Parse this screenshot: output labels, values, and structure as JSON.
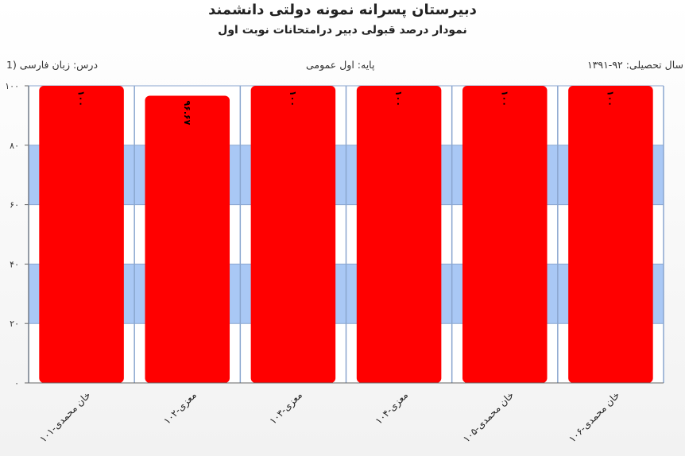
{
  "chart_data": {
    "type": "bar",
    "title": "دبیرستان پسرانه نمونه دولتی دانشمند",
    "subtitle": "نمودار درصد قبولی دبیر درامتحانات نوبت اول",
    "info": {
      "lesson": "درس: زبان فارسی (1",
      "grade": "پایه: اول عمومی",
      "year": "سال تحصیلی: ۹۲-۱۳۹۱"
    },
    "categories": [
      "خان محمدی-۱۰۱",
      "معزی-۱۰۲",
      "معزی-۱۰۳",
      "معزی-۱۰۴",
      "خان محمدی-۱۰۵",
      "خان محمدی-۱۰۶"
    ],
    "values": [
      100,
      96.67,
      100,
      100,
      100,
      100
    ],
    "data_labels": [
      "۱۰۰",
      "۹۶.۶۷",
      "۱۰۰",
      "۱۰۰",
      "۱۰۰",
      "۱۰۰"
    ],
    "yticks": [
      0,
      20,
      40,
      60,
      80,
      100
    ],
    "ytick_labels": [
      "۰",
      "۲۰",
      "۴۰",
      "۶۰",
      "۸۰",
      "۱۰۰"
    ],
    "ylim": [
      0,
      100
    ],
    "grid": true,
    "legend": "none",
    "colors": {
      "bar": "#ff0000",
      "band": "#a9c8f5",
      "grid": "#8aa6cf",
      "plot_bg": "#ffffff"
    }
  }
}
